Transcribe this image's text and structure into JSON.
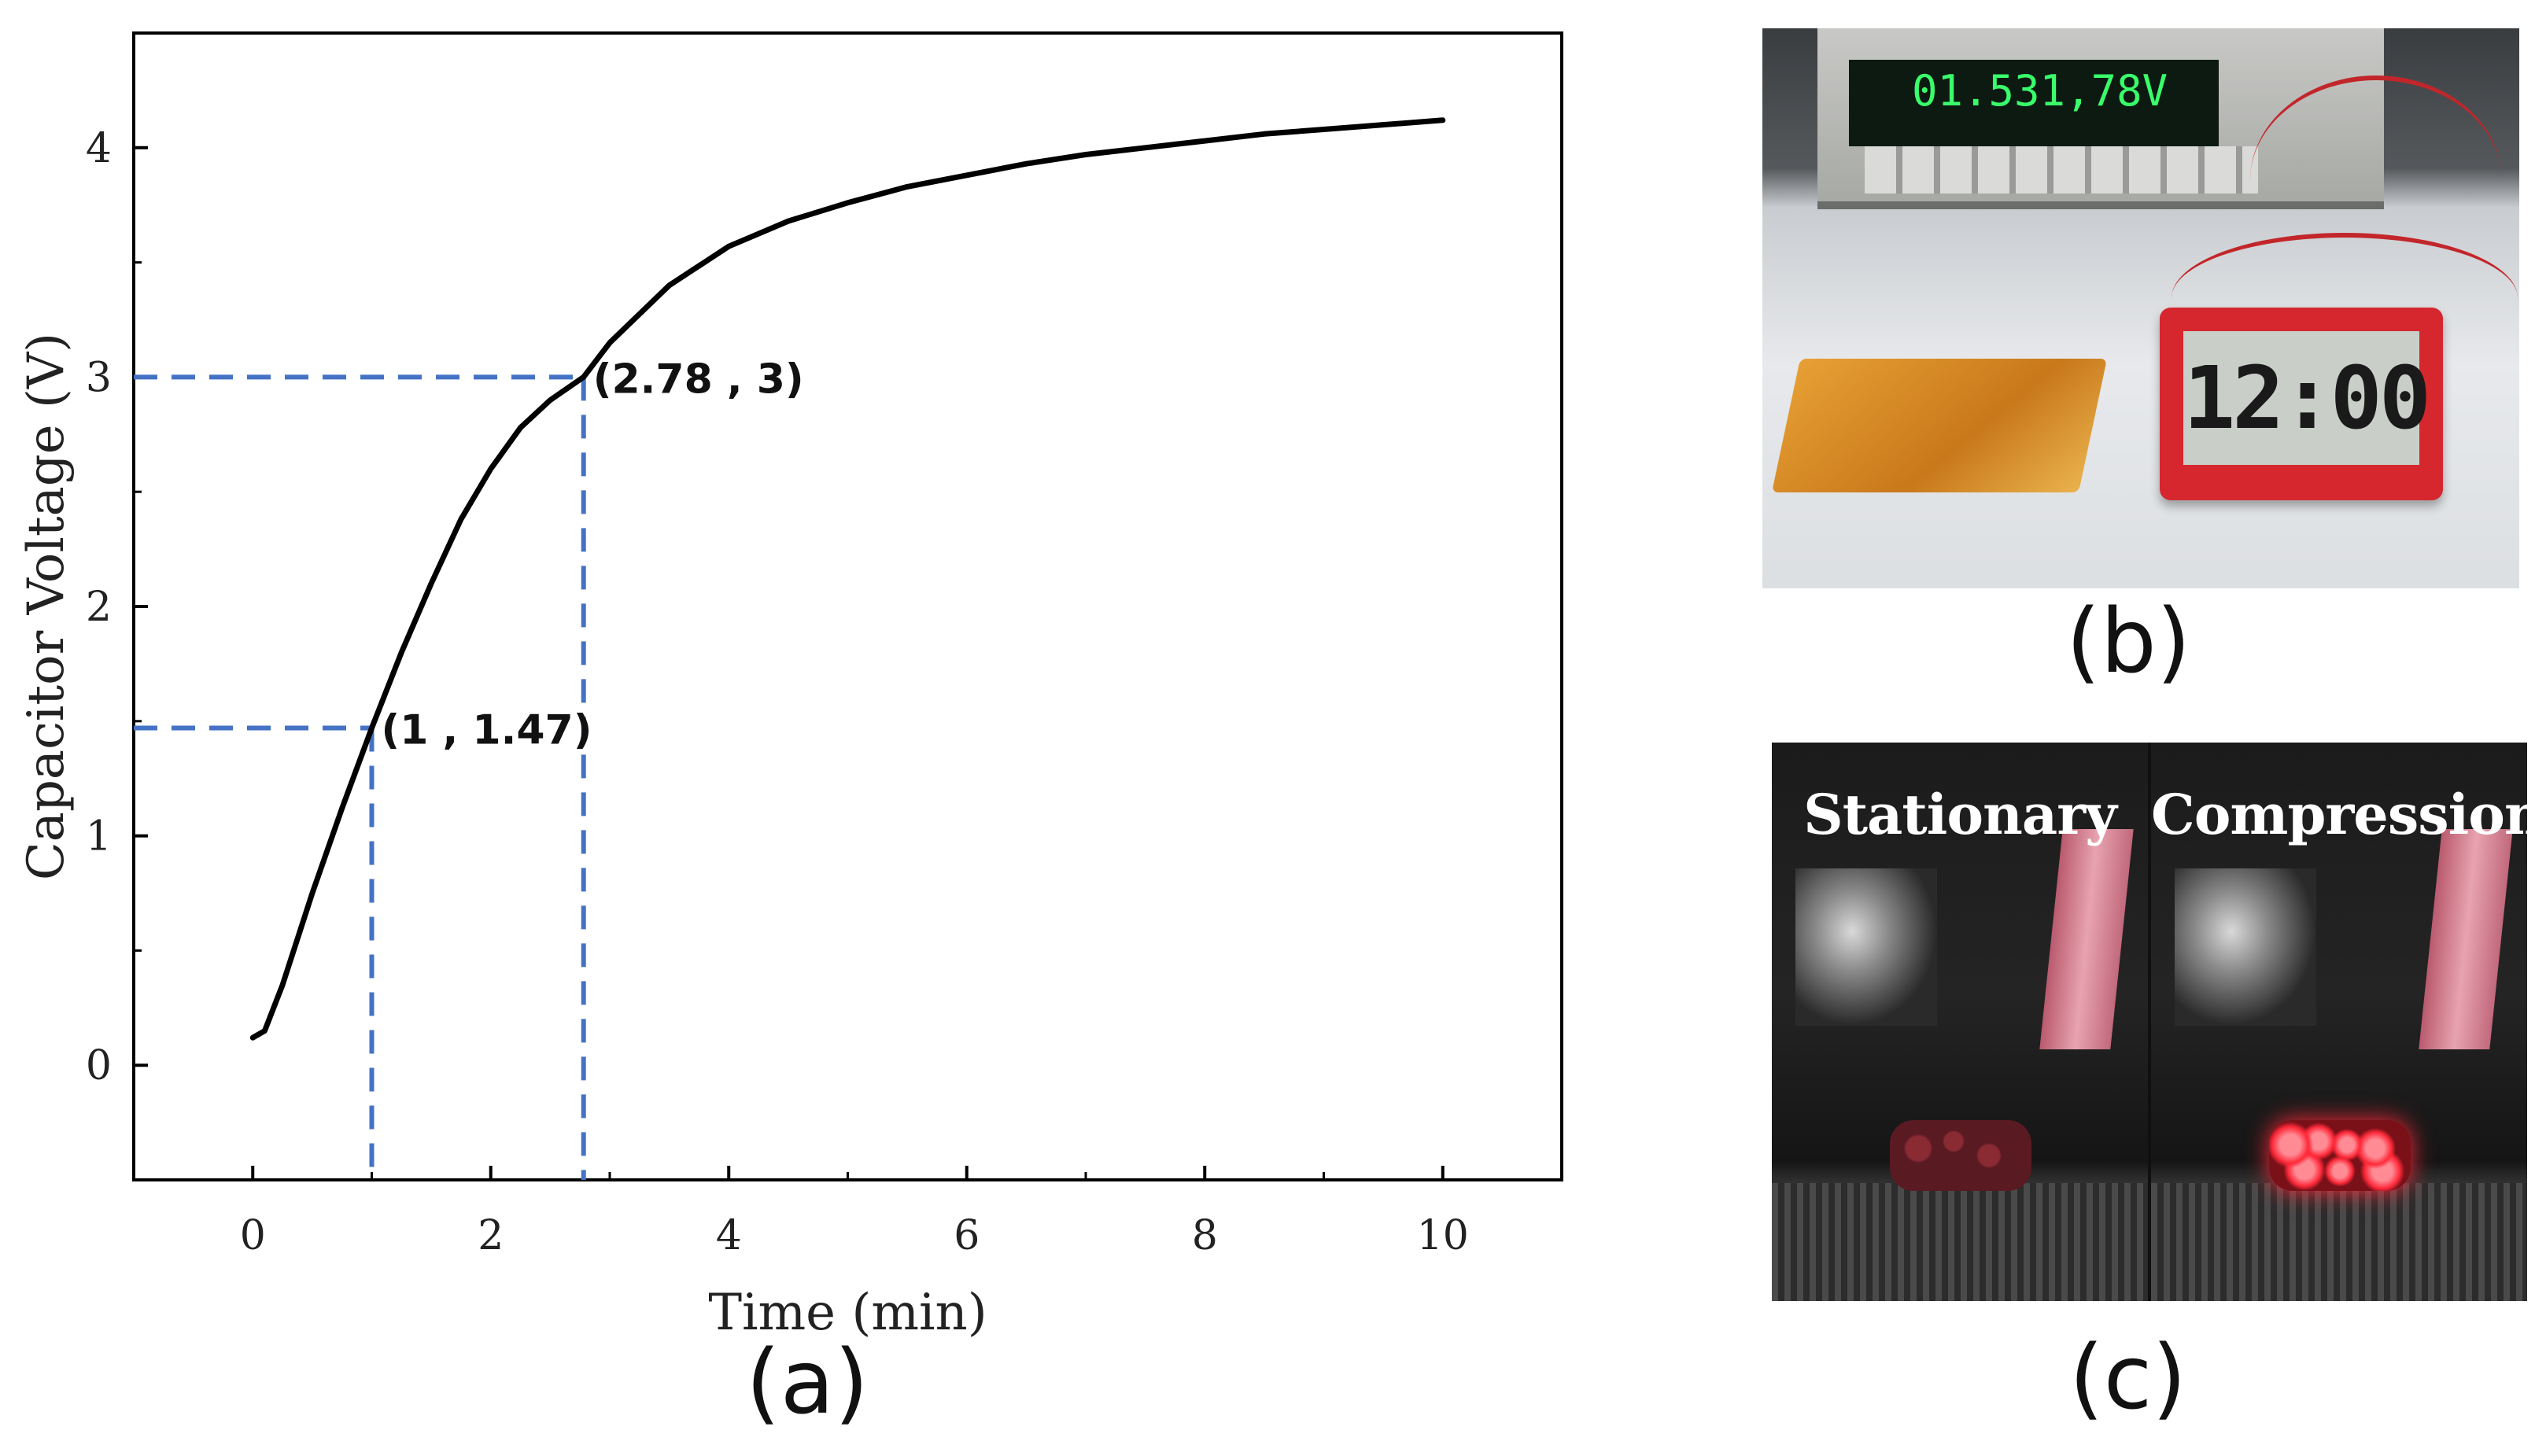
{
  "chart_data": {
    "type": "line",
    "xlabel": "Time (min)",
    "ylabel": "Capacitor Voltage (V)",
    "xlim": [
      -1,
      11
    ],
    "ylim": [
      -0.5,
      4.5
    ],
    "xticks": [
      0,
      2,
      4,
      6,
      8,
      10
    ],
    "yticks": [
      0,
      1,
      2,
      3,
      4
    ],
    "series": [
      {
        "x": [
          0,
          0.1,
          0.25,
          0.5,
          0.75,
          1.0,
          1.25,
          1.5,
          1.75,
          2.0,
          2.25,
          2.5,
          2.78,
          3.0,
          3.5,
          4.0,
          4.5,
          5.0,
          5.5,
          6.0,
          6.5,
          7.0,
          7.5,
          8.0,
          8.5,
          9.0,
          9.5,
          10.0
        ],
        "y": [
          0.12,
          0.15,
          0.35,
          0.75,
          1.12,
          1.47,
          1.8,
          2.1,
          2.38,
          2.6,
          2.78,
          2.9,
          3.0,
          3.15,
          3.4,
          3.57,
          3.68,
          3.76,
          3.83,
          3.88,
          3.93,
          3.97,
          4.0,
          4.03,
          4.06,
          4.08,
          4.1,
          4.12
        ]
      }
    ],
    "annotations": [
      {
        "x": 1,
        "y": 1.47,
        "text": "(1 , 1.47)"
      },
      {
        "x": 2.78,
        "y": 3,
        "text": "(2.78 , 3)"
      }
    ],
    "grid": false,
    "legend": "none"
  },
  "panels": {
    "a": "(a)",
    "b": "(b)",
    "c": "(c)"
  },
  "photo_b": {
    "meter_reading": "01.531,78V",
    "clock_display": "12:00"
  },
  "photo_c": {
    "left_label": "Stationary",
    "right_label": "Compression"
  },
  "colors": {
    "curve": "#000000",
    "guide": "#4472c4",
    "led_off": "#6a1c24",
    "led_on": "#ff2a3a"
  }
}
